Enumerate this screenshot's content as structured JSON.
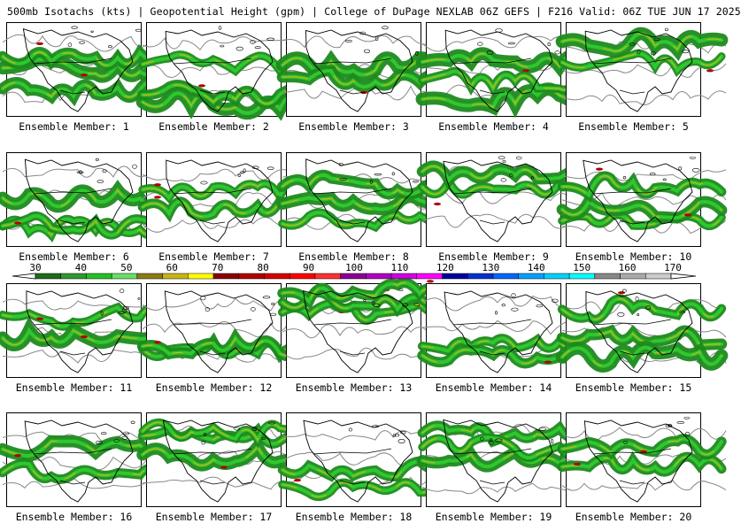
{
  "header": {
    "title": "500mb Isotachs (kts) | Geopotential Height (gpm) | College of DuPage NEXLAB   06Z GEFS | F216 Valid: 06Z TUE JUN 17 2025"
  },
  "members": [
    {
      "label": "Ensemble Member: 1"
    },
    {
      "label": "Ensemble Member: 2"
    },
    {
      "label": "Ensemble Member: 3"
    },
    {
      "label": "Ensemble Member: 4"
    },
    {
      "label": "Ensemble Member: 5"
    },
    {
      "label": "Ensemble Member: 6"
    },
    {
      "label": "Ensemble Member: 7"
    },
    {
      "label": "Ensemble Member: 8"
    },
    {
      "label": "Ensemble Member: 9"
    },
    {
      "label": "Ensemble Member: 10"
    },
    {
      "label": "Ensemble Member: 11"
    },
    {
      "label": "Ensemble Member: 12"
    },
    {
      "label": "Ensemble Member: 13"
    },
    {
      "label": "Ensemble Member: 14"
    },
    {
      "label": "Ensemble Member: 15"
    },
    {
      "label": "Ensemble Member: 16"
    },
    {
      "label": "Ensemble Member: 17"
    },
    {
      "label": "Ensemble Member: 18"
    },
    {
      "label": "Ensemble Member: 19"
    },
    {
      "label": "Ensemble Member: 20"
    }
  ],
  "colorbar": {
    "tick_labels": [
      "30",
      "40",
      "50",
      "60",
      "70",
      "80",
      "90",
      "100",
      "110",
      "120",
      "130",
      "140",
      "150",
      "160",
      "170"
    ],
    "colors": [
      "#1b6b1b",
      "#2e9a2e",
      "#22c222",
      "#66e066",
      "#8c7a14",
      "#c8b414",
      "#ffff00",
      "#8b0000",
      "#b00000",
      "#d40000",
      "#ff0000",
      "#ff3030",
      "#8b0094",
      "#b000c0",
      "#d000e0",
      "#ff00ff",
      "#0000a0",
      "#0030d0",
      "#0066ff",
      "#00a0ff",
      "#00d0ff",
      "#00ffff",
      "#888888",
      "#aaaaaa",
      "#cccccc"
    ]
  },
  "map_colors": {
    "coast": "#000000",
    "height_contour": "#888888",
    "jet_low": "#1e8a1e",
    "jet_mid": "#2ec82e",
    "jet_core": "#c8b414",
    "jet_max": "#b00000"
  }
}
